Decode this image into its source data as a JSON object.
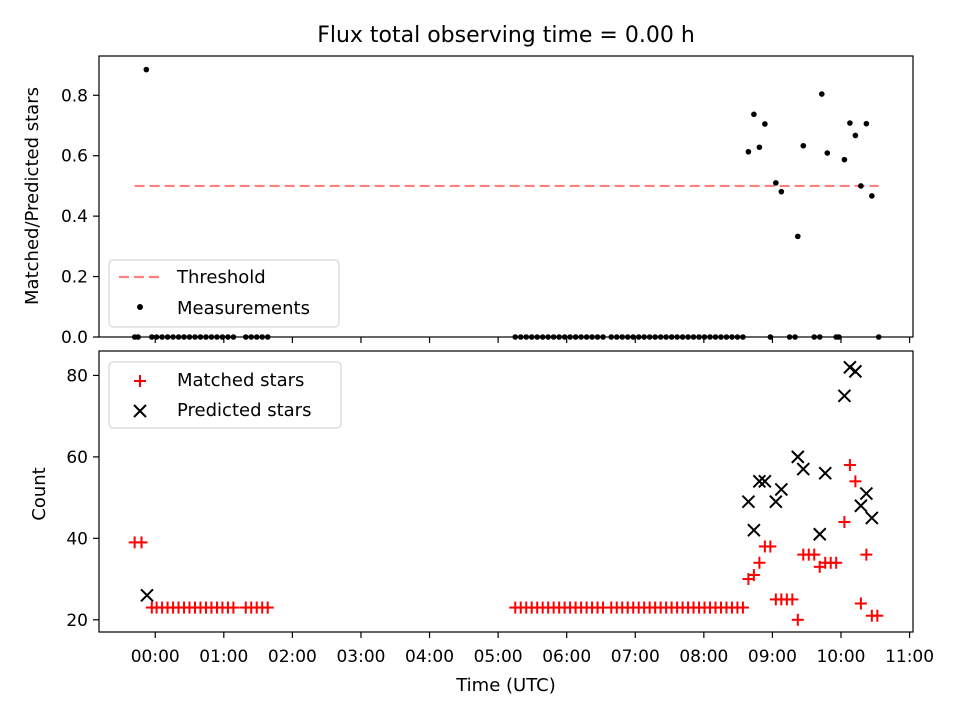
{
  "chart_data": [
    {
      "type": "scatter",
      "title": "Flux total observing time = 0.00 h",
      "xlabel": "",
      "ylabel": "Matched/Predicted stars",
      "ylim": [
        0,
        0.93
      ],
      "xlim": [
        -0.82,
        11.05
      ],
      "yticks": [
        0.0,
        0.2,
        0.4,
        0.6,
        0.8
      ],
      "ytick_labels": [
        "0.0",
        "0.2",
        "0.4",
        "0.6",
        "0.8"
      ],
      "grid": false,
      "legend_position": "lower-left",
      "threshold": {
        "name": "Threshold",
        "value": 0.5,
        "x_range": [
          -0.3,
          10.55
        ],
        "color": "#ff7f7f"
      },
      "series": [
        {
          "name": "Measurements",
          "color": "#000000",
          "points": [
            [
              -0.3,
              0
            ],
            [
              -0.25,
              0
            ],
            [
              -0.13,
              0.885
            ],
            [
              -0.05,
              0
            ],
            [
              0.02,
              0
            ],
            [
              0.1,
              0
            ],
            [
              0.18,
              0
            ],
            [
              0.26,
              0
            ],
            [
              0.34,
              0
            ],
            [
              0.42,
              0
            ],
            [
              0.5,
              0
            ],
            [
              0.58,
              0
            ],
            [
              0.66,
              0
            ],
            [
              0.74,
              0
            ],
            [
              0.82,
              0
            ],
            [
              0.9,
              0
            ],
            [
              0.98,
              0
            ],
            [
              1.06,
              0
            ],
            [
              1.14,
              0
            ],
            [
              1.32,
              0
            ],
            [
              1.4,
              0
            ],
            [
              1.48,
              0
            ],
            [
              1.56,
              0
            ],
            [
              1.64,
              0
            ],
            [
              5.25,
              0
            ],
            [
              5.33,
              0
            ],
            [
              5.41,
              0
            ],
            [
              5.49,
              0
            ],
            [
              5.57,
              0
            ],
            [
              5.65,
              0
            ],
            [
              5.73,
              0
            ],
            [
              5.81,
              0
            ],
            [
              5.89,
              0
            ],
            [
              5.97,
              0
            ],
            [
              6.05,
              0
            ],
            [
              6.13,
              0
            ],
            [
              6.21,
              0
            ],
            [
              6.29,
              0
            ],
            [
              6.37,
              0
            ],
            [
              6.45,
              0
            ],
            [
              6.53,
              0
            ],
            [
              6.65,
              0
            ],
            [
              6.73,
              0
            ],
            [
              6.81,
              0
            ],
            [
              6.89,
              0
            ],
            [
              6.97,
              0
            ],
            [
              7.05,
              0
            ],
            [
              7.13,
              0
            ],
            [
              7.21,
              0
            ],
            [
              7.29,
              0
            ],
            [
              7.37,
              0
            ],
            [
              7.45,
              0
            ],
            [
              7.53,
              0
            ],
            [
              7.61,
              0
            ],
            [
              7.69,
              0
            ],
            [
              7.77,
              0
            ],
            [
              7.85,
              0
            ],
            [
              7.93,
              0
            ],
            [
              8.01,
              0
            ],
            [
              8.09,
              0
            ],
            [
              8.17,
              0
            ],
            [
              8.25,
              0
            ],
            [
              8.33,
              0
            ],
            [
              8.41,
              0
            ],
            [
              8.49,
              0
            ],
            [
              8.57,
              0
            ],
            [
              8.65,
              0.613
            ],
            [
              8.73,
              0.737
            ],
            [
              8.81,
              0.628
            ],
            [
              8.89,
              0.705
            ],
            [
              8.97,
              0
            ],
            [
              9.05,
              0.51
            ],
            [
              9.13,
              0.481
            ],
            [
              9.25,
              0
            ],
            [
              9.33,
              0
            ],
            [
              9.37,
              0.333
            ],
            [
              9.45,
              0.633
            ],
            [
              9.61,
              0
            ],
            [
              9.69,
              0
            ],
            [
              9.72,
              0.804
            ],
            [
              9.8,
              0.609
            ],
            [
              9.93,
              0
            ],
            [
              9.97,
              0
            ],
            [
              10.05,
              0.587
            ],
            [
              10.13,
              0.708
            ],
            [
              10.21,
              0.667
            ],
            [
              10.29,
              0.5
            ],
            [
              10.37,
              0.706
            ],
            [
              10.45,
              0.467
            ],
            [
              10.55,
              0
            ]
          ]
        }
      ]
    },
    {
      "type": "scatter",
      "title": "",
      "xlabel": "Time (UTC)",
      "ylabel": "Count",
      "ylim": [
        17,
        86
      ],
      "xlim": [
        -0.82,
        11.05
      ],
      "yticks": [
        20,
        40,
        60,
        80
      ],
      "ytick_labels": [
        "20",
        "40",
        "60",
        "80"
      ],
      "xticks": [
        0,
        1,
        2,
        3,
        4,
        5,
        6,
        7,
        8,
        9,
        10,
        11
      ],
      "xtick_labels": [
        "00:00",
        "01:00",
        "02:00",
        "03:00",
        "04:00",
        "05:00",
        "06:00",
        "07:00",
        "08:00",
        "09:00",
        "10:00",
        "11:00"
      ],
      "grid": false,
      "legend_position": "upper-left",
      "series": [
        {
          "name": "Matched stars",
          "color": "#ff0000",
          "marker": "plus",
          "points": [
            [
              -0.3,
              39
            ],
            [
              -0.2,
              39
            ],
            [
              -0.05,
              23
            ],
            [
              0.02,
              23
            ],
            [
              0.1,
              23
            ],
            [
              0.18,
              23
            ],
            [
              0.26,
              23
            ],
            [
              0.34,
              23
            ],
            [
              0.42,
              23
            ],
            [
              0.5,
              23
            ],
            [
              0.58,
              23
            ],
            [
              0.66,
              23
            ],
            [
              0.74,
              23
            ],
            [
              0.82,
              23
            ],
            [
              0.9,
              23
            ],
            [
              0.98,
              23
            ],
            [
              1.06,
              23
            ],
            [
              1.14,
              23
            ],
            [
              1.32,
              23
            ],
            [
              1.4,
              23
            ],
            [
              1.48,
              23
            ],
            [
              1.56,
              23
            ],
            [
              1.64,
              23
            ],
            [
              5.25,
              23
            ],
            [
              5.33,
              23
            ],
            [
              5.41,
              23
            ],
            [
              5.49,
              23
            ],
            [
              5.57,
              23
            ],
            [
              5.65,
              23
            ],
            [
              5.73,
              23
            ],
            [
              5.81,
              23
            ],
            [
              5.89,
              23
            ],
            [
              5.97,
              23
            ],
            [
              6.05,
              23
            ],
            [
              6.13,
              23
            ],
            [
              6.21,
              23
            ],
            [
              6.29,
              23
            ],
            [
              6.37,
              23
            ],
            [
              6.45,
              23
            ],
            [
              6.53,
              23
            ],
            [
              6.65,
              23
            ],
            [
              6.73,
              23
            ],
            [
              6.81,
              23
            ],
            [
              6.89,
              23
            ],
            [
              6.97,
              23
            ],
            [
              7.05,
              23
            ],
            [
              7.13,
              23
            ],
            [
              7.21,
              23
            ],
            [
              7.29,
              23
            ],
            [
              7.37,
              23
            ],
            [
              7.45,
              23
            ],
            [
              7.53,
              23
            ],
            [
              7.61,
              23
            ],
            [
              7.69,
              23
            ],
            [
              7.77,
              23
            ],
            [
              7.85,
              23
            ],
            [
              7.93,
              23
            ],
            [
              8.01,
              23
            ],
            [
              8.09,
              23
            ],
            [
              8.17,
              23
            ],
            [
              8.25,
              23
            ],
            [
              8.33,
              23
            ],
            [
              8.41,
              23
            ],
            [
              8.49,
              23
            ],
            [
              8.57,
              23
            ],
            [
              8.65,
              30
            ],
            [
              8.73,
              31
            ],
            [
              8.81,
              34
            ],
            [
              8.89,
              38
            ],
            [
              8.97,
              38
            ],
            [
              9.05,
              25
            ],
            [
              9.13,
              25
            ],
            [
              9.21,
              25
            ],
            [
              9.29,
              25
            ],
            [
              9.37,
              20
            ],
            [
              9.45,
              36
            ],
            [
              9.53,
              36
            ],
            [
              9.61,
              36
            ],
            [
              9.69,
              33
            ],
            [
              9.77,
              34
            ],
            [
              9.85,
              34
            ],
            [
              9.93,
              34
            ],
            [
              10.05,
              44
            ],
            [
              10.13,
              58
            ],
            [
              10.21,
              54
            ],
            [
              10.29,
              24
            ],
            [
              10.37,
              36
            ],
            [
              10.45,
              21
            ],
            [
              10.53,
              21
            ]
          ]
        },
        {
          "name": "Predicted stars",
          "color": "#000000",
          "marker": "x",
          "points": [
            [
              -0.12,
              26
            ],
            [
              8.65,
              49
            ],
            [
              8.73,
              42
            ],
            [
              8.81,
              54
            ],
            [
              8.89,
              54
            ],
            [
              9.05,
              49
            ],
            [
              9.13,
              52
            ],
            [
              9.37,
              60
            ],
            [
              9.45,
              57
            ],
            [
              9.69,
              41
            ],
            [
              9.77,
              56
            ],
            [
              10.05,
              75
            ],
            [
              10.13,
              82
            ],
            [
              10.21,
              81
            ],
            [
              10.29,
              48
            ],
            [
              10.37,
              51
            ],
            [
              10.45,
              45
            ]
          ]
        }
      ]
    }
  ]
}
